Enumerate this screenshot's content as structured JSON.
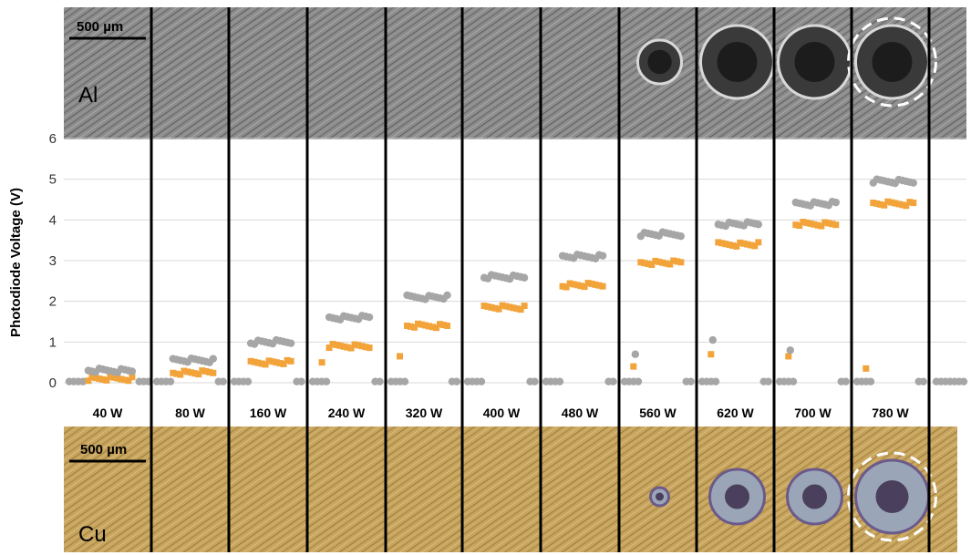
{
  "chart_data": {
    "type": "scatter",
    "ylabel": "Photodiode Voltage (V)",
    "ylim": [
      0,
      6
    ],
    "yticks": [
      0,
      1,
      2,
      3,
      4,
      5,
      6
    ],
    "grid": true,
    "categories": [
      "40 W",
      "80 W",
      "160 W",
      "240 W",
      "320 W",
      "400 W",
      "480 W",
      "560 W",
      "620 W",
      "700 W",
      "780 W"
    ],
    "series": [
      {
        "name": "",
        "color": "#a6a6a6",
        "marker": "circle",
        "plateau": [
          0.3,
          0.55,
          1.0,
          1.6,
          2.1,
          2.6,
          3.1,
          3.65,
          3.9,
          4.4,
          4.95
        ],
        "onset": [
          null,
          null,
          null,
          null,
          null,
          null,
          null,
          0.7,
          1.05,
          0.8,
          null
        ]
      },
      {
        "name": "",
        "color": "#f2a33a",
        "marker": "square",
        "plateau": [
          0.1,
          0.25,
          0.5,
          0.9,
          1.4,
          1.85,
          2.4,
          2.95,
          3.4,
          3.9,
          4.4
        ],
        "onset": [
          null,
          null,
          null,
          0.5,
          0.65,
          null,
          null,
          0.4,
          0.7,
          0.65,
          0.35
        ]
      }
    ],
    "baseline": 0.03
  },
  "images": {
    "al": {
      "label": "Al",
      "scale_bar": "500 µm",
      "bg": "#8c8c8c",
      "stroke": "#5c5c5c"
    },
    "cu": {
      "label": "Cu",
      "scale_bar": "500 µm",
      "bg": "#c8a55e",
      "stroke": "#9b7a3b"
    },
    "al_spots": [
      null,
      null,
      null,
      null,
      null,
      null,
      null,
      "small",
      "large",
      "large",
      "large-circled"
    ],
    "cu_spots": [
      null,
      null,
      null,
      null,
      null,
      null,
      null,
      "small",
      "medium",
      "medium",
      "large-circled"
    ]
  }
}
